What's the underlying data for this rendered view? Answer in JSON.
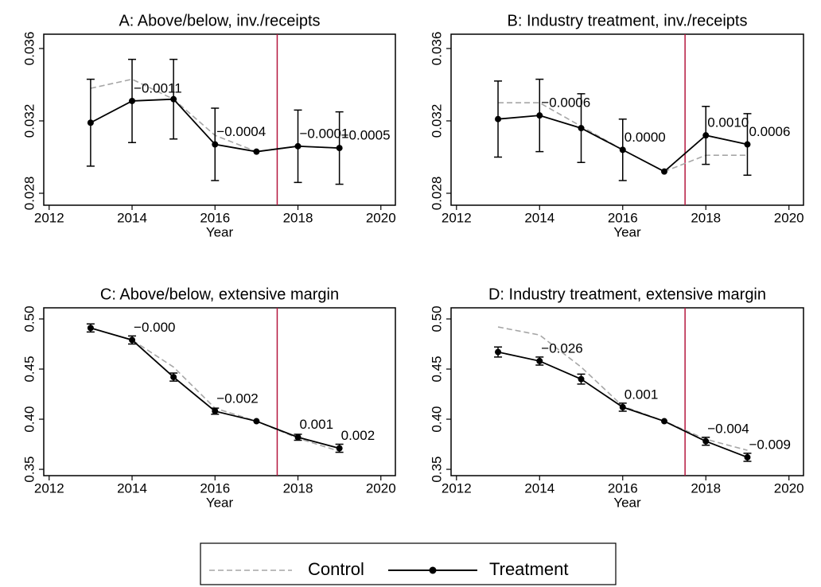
{
  "chart_data": [
    {
      "type": "line",
      "title": "A: Above/below, inv./receipts",
      "x_label": "Year",
      "x": [
        2013,
        2014,
        2015,
        2016,
        2017,
        2018,
        2019
      ],
      "xlim": [
        2011.87,
        2020.35
      ],
      "xticks": [
        2012,
        2014,
        2016,
        2018,
        2020
      ],
      "ylim": [
        0.02734,
        0.03679
      ],
      "yticks": [
        0.028,
        0.032,
        0.036
      ],
      "vline": 2017.5,
      "vline_color": "#b5173f",
      "series": [
        {
          "name": "Control",
          "color": "#a6a6a6",
          "dashed": true,
          "values": [
            0.0338,
            0.0343,
            0.0332,
            0.0312,
            0.0303,
            0.0306,
            0.0305
          ]
        },
        {
          "name": "Treatment",
          "color": "#000000",
          "values": [
            0.0319,
            0.0331,
            0.0332,
            0.0307,
            0.0303,
            0.0306,
            0.0305
          ],
          "errors": [
            0.0024,
            0.0023,
            0.0022,
            0.002,
            null,
            0.002,
            0.002
          ],
          "annotations": [
            null,
            "−0.0011",
            null,
            "−0.0004",
            null,
            "−0.0001",
            "−0.0005"
          ]
        }
      ]
    },
    {
      "type": "line",
      "title": "B: Industry treatment, inv./receipts",
      "x_label": "Year",
      "x": [
        2013,
        2014,
        2015,
        2016,
        2017,
        2018,
        2019
      ],
      "xlim": [
        2011.87,
        2020.35
      ],
      "xticks": [
        2012,
        2014,
        2016,
        2018,
        2020
      ],
      "ylim": [
        0.02734,
        0.03679
      ],
      "yticks": [
        0.028,
        0.032,
        0.036
      ],
      "vline": 2017.5,
      "vline_color": "#b5173f",
      "series": [
        {
          "name": "Control",
          "color": "#a6a6a6",
          "dashed": true,
          "values": [
            0.033,
            0.033,
            0.0317,
            0.0304,
            0.0292,
            0.0301,
            0.0301
          ]
        },
        {
          "name": "Treatment",
          "color": "#000000",
          "values": [
            0.0321,
            0.0323,
            0.0316,
            0.0304,
            0.0292,
            0.0312,
            0.0307
          ],
          "errors": [
            0.0021,
            0.002,
            0.0019,
            0.0017,
            null,
            0.0016,
            0.0017
          ],
          "annotations": [
            null,
            "−0.0006",
            null,
            "0.0000",
            null,
            "0.0010",
            "0.0006"
          ]
        }
      ]
    },
    {
      "type": "line",
      "title": "C: Above/below, extensive margin",
      "x_label": "Year",
      "x": [
        2013,
        2014,
        2015,
        2016,
        2017,
        2018,
        2019
      ],
      "xlim": [
        2011.87,
        2020.35
      ],
      "xticks": [
        2012,
        2014,
        2016,
        2018,
        2020
      ],
      "ylim": [
        0.3437,
        0.5111
      ],
      "yticks": [
        0.35,
        {
          "value": 0.4,
          "label": "0.40"
        },
        0.45,
        {
          "value": 0.5,
          "label": "0.50"
        }
      ],
      "vline": 2017.5,
      "vline_color": "#b5173f",
      "series": [
        {
          "name": "Control",
          "color": "#a6a6a6",
          "dashed": true,
          "values": [
            0.491,
            0.479,
            0.452,
            0.411,
            0.398,
            0.381,
            0.368
          ]
        },
        {
          "name": "Treatment",
          "color": "#000000",
          "values": [
            0.491,
            0.479,
            0.442,
            0.408,
            0.398,
            0.382,
            0.371
          ],
          "errors": [
            0.004,
            0.004,
            0.004,
            0.003,
            null,
            0.003,
            0.004
          ],
          "annotations": [
            null,
            "−0.000",
            null,
            "−0.002",
            null,
            "0.001",
            "0.002"
          ]
        }
      ]
    },
    {
      "type": "line",
      "title": "D: Industry treatment, extensive margin",
      "x_label": "Year",
      "x": [
        2013,
        2014,
        2015,
        2016,
        2017,
        2018,
        2019
      ],
      "xlim": [
        2011.87,
        2020.35
      ],
      "xticks": [
        2012,
        2014,
        2016,
        2018,
        2020
      ],
      "ylim": [
        0.3437,
        0.5111
      ],
      "yticks": [
        0.35,
        {
          "value": 0.4,
          "label": "0.40"
        },
        0.45,
        {
          "value": 0.5,
          "label": "0.50"
        }
      ],
      "vline": 2017.5,
      "vline_color": "#b5173f",
      "series": [
        {
          "name": "Control",
          "color": "#a6a6a6",
          "dashed": true,
          "values": [
            0.492,
            0.484,
            0.452,
            0.413,
            0.398,
            0.38,
            0.369
          ]
        },
        {
          "name": "Treatment",
          "color": "#000000",
          "values": [
            0.467,
            0.458,
            0.44,
            0.412,
            0.398,
            0.378,
            0.362
          ],
          "errors": [
            0.005,
            0.004,
            0.005,
            0.004,
            null,
            0.004,
            0.004
          ],
          "annotations": [
            null,
            "−0.026",
            null,
            "0.001",
            null,
            "−0.004",
            "−0.009"
          ]
        }
      ]
    }
  ]
}
